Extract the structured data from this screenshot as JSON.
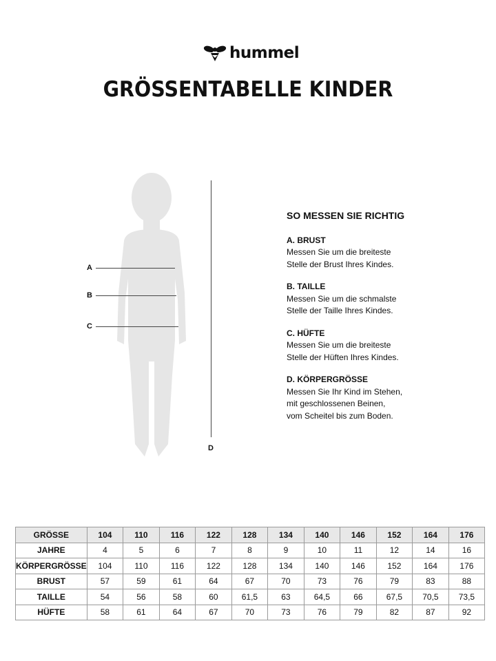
{
  "brand": "hummel",
  "title": "GRÖSSENTABELLE KINDER",
  "figure_labels": {
    "a": "A",
    "b": "B",
    "c": "C",
    "d": "D"
  },
  "guide": {
    "heading": "SO MESSEN SIE RICHTIG",
    "items": [
      {
        "title": "A. BRUST",
        "text": "Messen Sie um die breiteste\nStelle der Brust Ihres Kindes."
      },
      {
        "title": "B. TAILLE",
        "text": "Messen Sie um die schmalste\nStelle der Taille Ihres Kindes."
      },
      {
        "title": "C. HÜFTE",
        "text": "Messen Sie um die breiteste\nStelle der Hüften Ihres Kindes."
      },
      {
        "title": "D. KÖRPERGRÖSSE",
        "text": "Messen Sie Ihr Kind im Stehen,\nmit geschlossenen Beinen,\nvom Scheitel bis zum Boden."
      }
    ]
  },
  "table": {
    "rows": [
      {
        "label": "GRÖSSE",
        "values": [
          "104",
          "110",
          "116",
          "122",
          "128",
          "134",
          "140",
          "146",
          "152",
          "164",
          "176"
        ]
      },
      {
        "label": "JAHRE",
        "values": [
          "4",
          "5",
          "6",
          "7",
          "8",
          "9",
          "10",
          "11",
          "12",
          "14",
          "16"
        ]
      },
      {
        "label": "KÖRPERGRÖSSE",
        "values": [
          "104",
          "110",
          "116",
          "122",
          "128",
          "134",
          "140",
          "146",
          "152",
          "164",
          "176"
        ]
      },
      {
        "label": "BRUST",
        "values": [
          "57",
          "59",
          "61",
          "64",
          "67",
          "70",
          "73",
          "76",
          "79",
          "83",
          "88"
        ]
      },
      {
        "label": "TAILLE",
        "values": [
          "54",
          "56",
          "58",
          "60",
          "61,5",
          "63",
          "64,5",
          "66",
          "67,5",
          "70,5",
          "73,5"
        ]
      },
      {
        "label": "HÜFTE",
        "values": [
          "58",
          "61",
          "64",
          "67",
          "70",
          "73",
          "76",
          "79",
          "82",
          "87",
          "92"
        ]
      }
    ]
  },
  "colors": {
    "silhouette": "#e6e6e6",
    "header_bg": "#e8e8e8"
  }
}
